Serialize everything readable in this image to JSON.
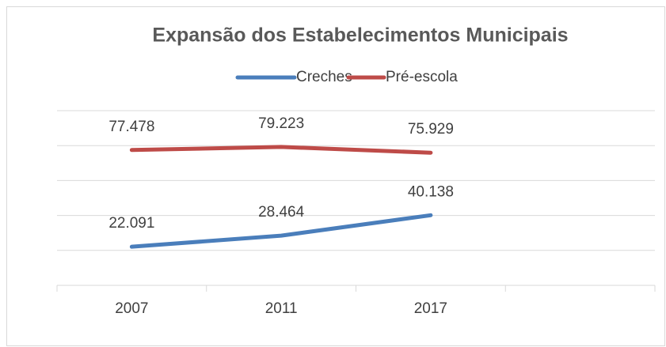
{
  "chart_data": {
    "type": "line",
    "title": "Expansão dos Estabelecimentos Municipais",
    "categories": [
      "2007",
      "2011",
      "2017",
      null
    ],
    "series": [
      {
        "name": "Creches",
        "color": "#4a7ebb",
        "values": [
          22091,
          28464,
          40138,
          null
        ],
        "value_labels": [
          "22.091",
          "28.464",
          "40.138",
          null
        ]
      },
      {
        "name": "Pré-escola",
        "color": "#be4b48",
        "values": [
          77478,
          79223,
          75929,
          null
        ],
        "value_labels": [
          "77.478",
          "79.223",
          "75.929",
          null
        ]
      }
    ],
    "ylim": [
      0,
      100000
    ],
    "yticks": [
      0,
      20000,
      40000,
      60000,
      80000,
      100000
    ],
    "grid": true,
    "legend": "top"
  }
}
